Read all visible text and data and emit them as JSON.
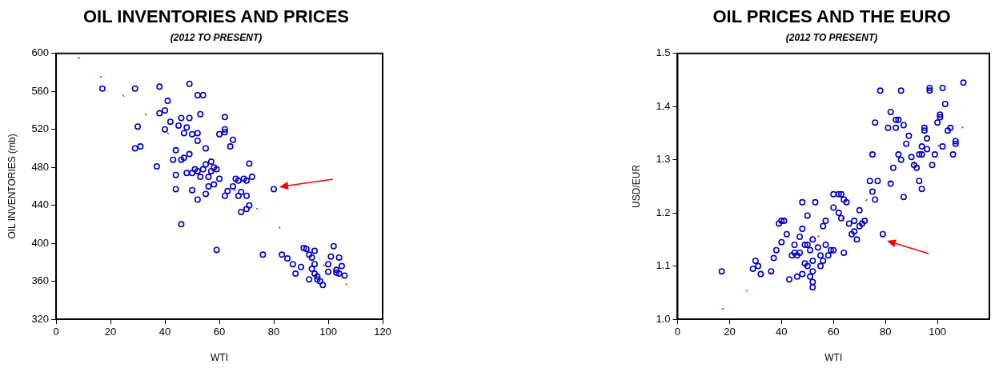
{
  "chart_data": [
    {
      "type": "scatter",
      "title": "OIL INVENTORIES AND PRICES",
      "subtitle": "(2012 TO PRESENT)",
      "xlabel": "WTI",
      "ylabel": "OIL INVENTORIES (mb)",
      "xlim": [
        0,
        120
      ],
      "xticks": [
        0,
        20,
        40,
        60,
        80,
        100,
        120
      ],
      "ylim": [
        320,
        600
      ],
      "yticks": [
        320,
        360,
        400,
        440,
        480,
        520,
        560,
        600
      ],
      "grid": false,
      "legend": false,
      "marker": "circle",
      "series": [
        {
          "color": "#0000cc",
          "x": [
            17,
            29,
            38,
            49,
            52,
            54,
            30,
            29,
            31,
            37,
            40,
            41,
            40,
            38,
            42,
            45,
            46,
            48,
            49,
            47,
            50,
            53,
            52,
            55,
            52,
            44,
            43,
            44,
            47,
            49,
            50,
            48,
            46,
            51,
            53,
            52,
            54,
            56,
            57,
            55,
            57,
            58,
            59,
            60,
            58,
            56,
            55,
            50,
            52,
            44,
            46,
            59,
            60,
            62,
            62,
            64,
            65,
            62,
            66,
            67,
            65,
            63,
            62,
            67,
            69,
            68,
            70,
            72,
            71,
            70,
            71,
            70,
            68,
            80,
            76,
            83,
            85,
            87,
            88,
            90,
            91,
            92,
            93,
            94,
            95,
            95,
            94,
            95,
            96,
            93,
            96,
            97,
            98,
            100,
            100,
            101,
            102,
            104,
            103,
            104,
            105,
            106,
            103
          ],
          "values": [
            563,
            563,
            565,
            568,
            556,
            556,
            523,
            500,
            502,
            481,
            520,
            550,
            540,
            537,
            528,
            524,
            532,
            522,
            532,
            516,
            515,
            536,
            516,
            500,
            508,
            498,
            488,
            457,
            490,
            494,
            474,
            474,
            488,
            478,
            470,
            476,
            478,
            470,
            476,
            483,
            486,
            480,
            478,
            468,
            462,
            460,
            452,
            456,
            446,
            472,
            420,
            393,
            515,
            520,
            517,
            502,
            509,
            533,
            468,
            466,
            460,
            455,
            450,
            450,
            468,
            454,
            466,
            470,
            484,
            450,
            440,
            436,
            433,
            457,
            388,
            388,
            384,
            378,
            368,
            375,
            395,
            394,
            388,
            385,
            392,
            378,
            373,
            368,
            365,
            362,
            362,
            360,
            356,
            370,
            378,
            386,
            397,
            385,
            372,
            368,
            376,
            366,
            369
          ]
        },
        {
          "type": "line",
          "color": "#ff0000",
          "line_style": "dashed",
          "marker": "none",
          "x": [
            8,
            107
          ],
          "values": [
            596,
            356
          ]
        }
      ]
    },
    {
      "type": "scatter",
      "title": "OIL PRICES AND THE EURO",
      "subtitle": "(2012 TO PRESENT)",
      "xlabel": "WTI",
      "ylabel": "USD/EUR",
      "xlim": [
        0,
        120
      ],
      "xticks": [
        0,
        20,
        40,
        60,
        80,
        100
      ],
      "ylim": [
        1.0,
        1.5
      ],
      "yticks": [
        {
          "value": 1,
          "label": "1.0"
        },
        1.1,
        1.2,
        1.3,
        1.4,
        1.5
      ],
      "grid": false,
      "legend": false,
      "marker": "circle",
      "series": [
        {
          "color": "#0000cc",
          "x": [
            17,
            29,
            30,
            31,
            32,
            36,
            37,
            38,
            39,
            40,
            41,
            40,
            42,
            43,
            44,
            45,
            45,
            46,
            46,
            47,
            47,
            48,
            48,
            48,
            49,
            49,
            50,
            50,
            50,
            51,
            52,
            52,
            52,
            51,
            52,
            52,
            53,
            54,
            55,
            55,
            56,
            56,
            57,
            57,
            58,
            59,
            60,
            60,
            60,
            62,
            62,
            63,
            63,
            64,
            64,
            65,
            66,
            67,
            68,
            68,
            69,
            70,
            70,
            71,
            72,
            74,
            75,
            75,
            76,
            76,
            77,
            78,
            79,
            81,
            82,
            82,
            83,
            84,
            84,
            85,
            86,
            86,
            87,
            87,
            88,
            89,
            90,
            91,
            92,
            93,
            93,
            94,
            94,
            95,
            95,
            96,
            96,
            97,
            97,
            98,
            100,
            101,
            101,
            102,
            102,
            103,
            104,
            105,
            106,
            107,
            107,
            110,
            94,
            99,
            85
          ],
          "values": [
            1.09,
            1.095,
            1.11,
            1.1,
            1.085,
            1.09,
            1.115,
            1.13,
            1.18,
            1.185,
            1.185,
            1.145,
            1.16,
            1.075,
            1.12,
            1.125,
            1.14,
            1.12,
            1.08,
            1.125,
            1.155,
            1.17,
            1.22,
            1.085,
            1.105,
            1.14,
            1.14,
            1.1,
            1.195,
            1.08,
            1.06,
            1.07,
            1.09,
            1.13,
            1.15,
            1.11,
            1.22,
            1.135,
            1.12,
            1.1,
            1.175,
            1.11,
            1.14,
            1.185,
            1.12,
            1.13,
            1.21,
            1.235,
            1.13,
            1.235,
            1.2,
            1.235,
            1.19,
            1.125,
            1.225,
            1.22,
            1.18,
            1.16,
            1.185,
            1.165,
            1.15,
            1.175,
            1.205,
            1.18,
            1.185,
            1.26,
            1.31,
            1.24,
            1.37,
            1.225,
            1.26,
            1.43,
            1.16,
            1.36,
            1.39,
            1.255,
            1.285,
            1.36,
            1.375,
            1.375,
            1.43,
            1.3,
            1.365,
            1.23,
            1.33,
            1.345,
            1.305,
            1.29,
            1.285,
            1.31,
            1.26,
            1.325,
            1.31,
            1.36,
            1.355,
            1.32,
            1.34,
            1.435,
            1.43,
            1.29,
            1.37,
            1.38,
            1.385,
            1.325,
            1.435,
            1.405,
            1.355,
            1.36,
            1.31,
            1.335,
            1.33,
            1.445,
            1.245,
            1.31,
            1.31
          ]
        },
        {
          "type": "line",
          "color": "#ff0000",
          "line_style": "dashed",
          "marker": "none",
          "x": [
            17,
            110
          ],
          "values": [
            1.018,
            1.362
          ]
        }
      ]
    }
  ]
}
